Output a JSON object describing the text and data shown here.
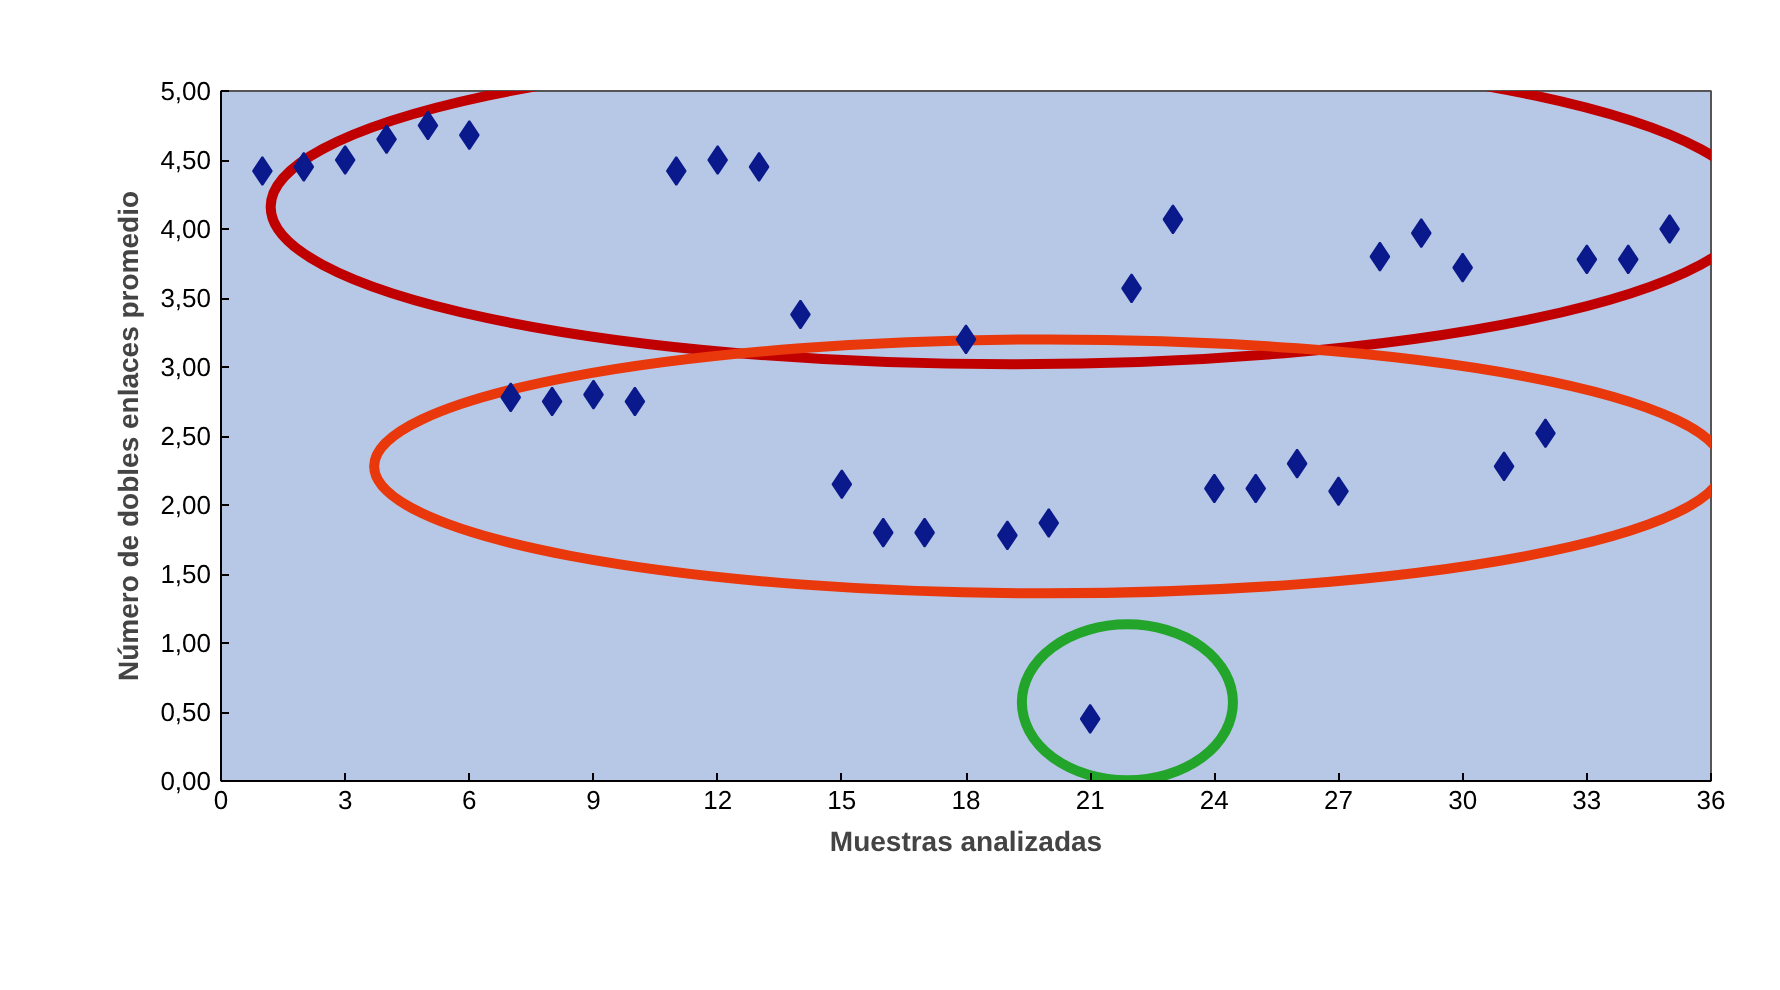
{
  "chart_data": {
    "type": "scatter",
    "xlabel": "Muestras analizadas",
    "ylabel": "Número de dobles enlaces promedio",
    "x": [
      1,
      2,
      3,
      4,
      5,
      6,
      7,
      8,
      9,
      10,
      11,
      12,
      13,
      14,
      15,
      16,
      17,
      18,
      19,
      20,
      21,
      22,
      23,
      24,
      25,
      26,
      27,
      28,
      29,
      30,
      31,
      32,
      33,
      34,
      35
    ],
    "series": [
      {
        "color": "#0a1a8c",
        "values": [
          4.42,
          4.45,
          4.5,
          4.65,
          4.75,
          4.68,
          2.78,
          2.75,
          2.8,
          2.75,
          4.42,
          4.5,
          4.45,
          3.38,
          2.15,
          1.8,
          1.8,
          3.2,
          1.78,
          1.87,
          0.45,
          3.57,
          4.07,
          2.12,
          2.12,
          2.3,
          2.1,
          3.8,
          3.97,
          3.72,
          2.28,
          2.52,
          3.78,
          3.78,
          4.0
        ]
      }
    ],
    "marker": "diamond",
    "grid": false,
    "xlim": [
      0,
      36
    ],
    "xticks": [
      0,
      3,
      6,
      9,
      12,
      15,
      18,
      21,
      24,
      27,
      30,
      33,
      36
    ],
    "ylim": [
      0,
      5
    ],
    "yticks": [
      {
        "value": 0,
        "label": "0,00"
      },
      {
        "value": 0.5,
        "label": "0,50"
      },
      {
        "value": 1,
        "label": "1,00"
      },
      {
        "value": 1.5,
        "label": "1,50"
      },
      {
        "value": 2,
        "label": "2,00"
      },
      {
        "value": 2.5,
        "label": "2,50"
      },
      {
        "value": 3,
        "label": "3,00"
      },
      {
        "value": 3.5,
        "label": "3,50"
      },
      {
        "value": 4,
        "label": "4,00"
      },
      {
        "value": 4.5,
        "label": "4,50"
      },
      {
        "value": 5,
        "label": "5,00"
      }
    ]
  }
}
